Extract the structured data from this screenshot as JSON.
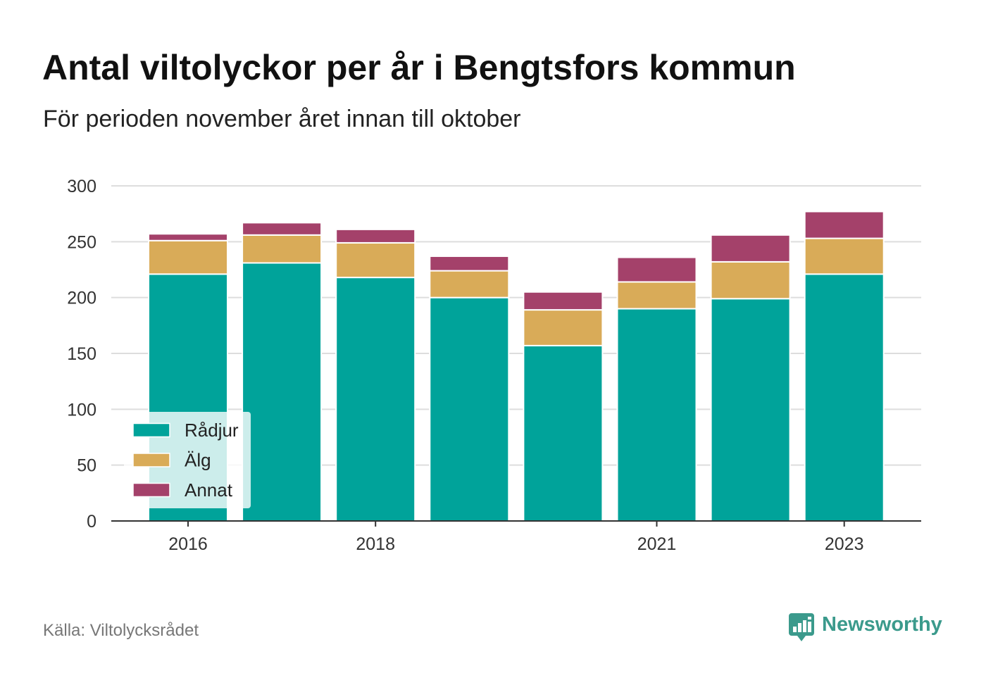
{
  "source": "Källa: Viltolycksrådet",
  "brand": {
    "name": "Newsworthy",
    "icon": "newsworthy-logo-icon",
    "color": "#3b9a8c"
  },
  "chart_data": {
    "type": "bar",
    "stacked": true,
    "title": "Antal viltolyckor per år i Bengtsfors kommun",
    "subtitle": "För perioden november året innan till oktober",
    "x": [
      2016,
      2017,
      2018,
      2019,
      2020,
      2021,
      2022,
      2023
    ],
    "x_tick_labels": [
      "2016",
      "2018",
      "2021",
      "2023"
    ],
    "y_ticks": [
      0,
      50,
      100,
      150,
      200,
      250,
      300
    ],
    "ylim": [
      0,
      300
    ],
    "grid": true,
    "legend_position": "bottom-left",
    "series": [
      {
        "name": "Rådjur",
        "color": "#00a39a",
        "values": [
          221,
          231,
          218,
          200,
          157,
          190,
          199,
          221
        ]
      },
      {
        "name": "Älg",
        "color": "#d9ab58",
        "values": [
          30,
          25,
          31,
          24,
          32,
          24,
          33,
          32
        ]
      },
      {
        "name": "Annat",
        "color": "#a4416a",
        "values": [
          6,
          11,
          12,
          13,
          16,
          22,
          24,
          24
        ]
      }
    ]
  }
}
